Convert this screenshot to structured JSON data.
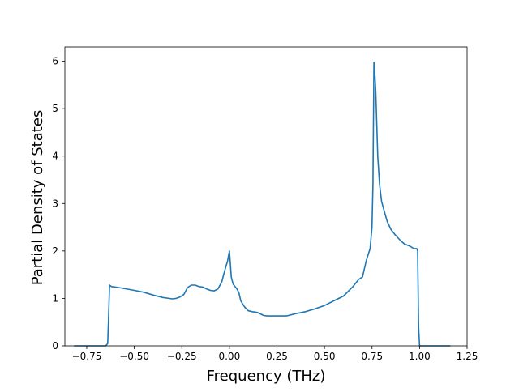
{
  "chart_data": {
    "type": "line",
    "title": "",
    "xlabel": "Frequency (THz)",
    "ylabel": "Partial Density of States",
    "xlim": [
      -0.865,
      1.25
    ],
    "ylim": [
      0,
      6.3
    ],
    "x_ticks": [
      -0.75,
      -0.5,
      -0.25,
      0.0,
      0.25,
      0.5,
      0.75,
      1.0,
      1.25
    ],
    "x_tick_labels": [
      "−0.75",
      "−0.50",
      "−0.25",
      "0.00",
      "0.25",
      "0.50",
      "0.75",
      "1.00",
      "1.25"
    ],
    "y_ticks": [
      0,
      1,
      2,
      3,
      4,
      5,
      6
    ],
    "y_tick_labels": [
      "0",
      "1",
      "2",
      "3",
      "4",
      "5",
      "6"
    ],
    "grid": false,
    "legend": "none",
    "series": [
      {
        "color": "#1f77b4",
        "x": [
          -0.815,
          -0.75,
          -0.65,
          -0.64,
          -0.635,
          -0.63,
          -0.62,
          -0.6,
          -0.57,
          -0.5,
          -0.45,
          -0.4,
          -0.35,
          -0.3,
          -0.28,
          -0.26,
          -0.24,
          -0.22,
          -0.2,
          -0.18,
          -0.16,
          -0.14,
          -0.12,
          -0.1,
          -0.08,
          -0.06,
          -0.04,
          -0.03,
          -0.02,
          -0.01,
          0.0,
          0.005,
          0.01,
          0.02,
          0.04,
          0.05,
          0.06,
          0.08,
          0.1,
          0.12,
          0.14,
          0.15,
          0.18,
          0.2,
          0.25,
          0.3,
          0.35,
          0.4,
          0.45,
          0.5,
          0.55,
          0.6,
          0.65,
          0.68,
          0.7,
          0.72,
          0.74,
          0.75,
          0.755,
          0.76,
          0.765,
          0.77,
          0.78,
          0.79,
          0.8,
          0.81,
          0.83,
          0.85,
          0.87,
          0.9,
          0.92,
          0.95,
          0.97,
          0.985,
          0.99,
          0.995,
          1.0,
          1.01,
          1.05,
          1.1,
          1.16
        ],
        "y": [
          0,
          0,
          0,
          0.05,
          0.6,
          1.28,
          1.25,
          1.24,
          1.22,
          1.17,
          1.13,
          1.07,
          1.02,
          0.99,
          1.0,
          1.03,
          1.08,
          1.23,
          1.28,
          1.28,
          1.25,
          1.24,
          1.2,
          1.17,
          1.16,
          1.2,
          1.35,
          1.5,
          1.65,
          1.78,
          2.0,
          1.75,
          1.45,
          1.3,
          1.2,
          1.12,
          0.95,
          0.82,
          0.74,
          0.72,
          0.71,
          0.7,
          0.64,
          0.63,
          0.63,
          0.63,
          0.68,
          0.72,
          0.78,
          0.85,
          0.95,
          1.05,
          1.25,
          1.4,
          1.45,
          1.8,
          2.05,
          2.5,
          3.4,
          5.98,
          5.7,
          5.35,
          4.0,
          3.4,
          3.05,
          2.9,
          2.62,
          2.45,
          2.35,
          2.22,
          2.15,
          2.1,
          2.05,
          2.05,
          2.0,
          0.4,
          0.0,
          0,
          0,
          0,
          0
        ]
      }
    ]
  }
}
